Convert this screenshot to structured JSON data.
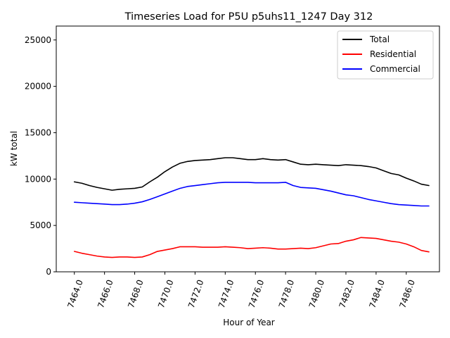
{
  "chart_data": {
    "type": "line",
    "title": "Timeseries Load for P5U p5uhs11_1247  Day 312",
    "xlabel": "Hour of Year",
    "ylabel": "kW total",
    "xlim": [
      7462.8,
      7488.2
    ],
    "ylim": [
      0,
      26500
    ],
    "xticks": [
      7464.0,
      7466.0,
      7468.0,
      7470.0,
      7472.0,
      7474.0,
      7476.0,
      7478.0,
      7480.0,
      7482.0,
      7484.0,
      7486.0
    ],
    "xtick_labels": [
      "7464.0",
      "7466.0",
      "7468.0",
      "7470.0",
      "7472.0",
      "7474.0",
      "7476.0",
      "7478.0",
      "7480.0",
      "7482.0",
      "7484.0",
      "7486.0"
    ],
    "yticks": [
      0,
      5000,
      10000,
      15000,
      20000,
      25000
    ],
    "ytick_labels": [
      "0",
      "5000",
      "10000",
      "15000",
      "20000",
      "25000"
    ],
    "legend_position": "top-right",
    "x": [
      7464.0,
      7464.5,
      7465.0,
      7465.5,
      7466.0,
      7466.5,
      7467.0,
      7467.5,
      7468.0,
      7468.5,
      7469.0,
      7469.5,
      7470.0,
      7470.5,
      7471.0,
      7471.5,
      7472.0,
      7472.5,
      7473.0,
      7473.5,
      7474.0,
      7474.5,
      7475.0,
      7475.5,
      7476.0,
      7476.5,
      7477.0,
      7477.5,
      7478.0,
      7478.5,
      7479.0,
      7479.5,
      7480.0,
      7480.5,
      7481.0,
      7481.5,
      7482.0,
      7482.5,
      7483.0,
      7483.5,
      7484.0,
      7484.5,
      7485.0,
      7485.5,
      7486.0,
      7486.5,
      7487.0,
      7487.5
    ],
    "series": [
      {
        "name": "Total",
        "color": "#000000",
        "values": [
          9700,
          9550,
          9300,
          9100,
          8950,
          8800,
          8900,
          8950,
          9000,
          9150,
          9700,
          10200,
          10800,
          11300,
          11700,
          11900,
          12000,
          12050,
          12100,
          12200,
          12300,
          12300,
          12200,
          12100,
          12100,
          12200,
          12100,
          12050,
          12100,
          11850,
          11600,
          11550,
          11600,
          11550,
          11500,
          11450,
          11550,
          11500,
          11450,
          11350,
          11200,
          10900,
          10600,
          10450,
          10100,
          9800,
          9450,
          9300
        ]
      },
      {
        "name": "Residential",
        "color": "#ff0000",
        "values": [
          2200,
          2000,
          1850,
          1700,
          1600,
          1550,
          1600,
          1600,
          1550,
          1600,
          1850,
          2200,
          2350,
          2500,
          2700,
          2700,
          2700,
          2650,
          2650,
          2650,
          2700,
          2650,
          2600,
          2500,
          2550,
          2600,
          2550,
          2450,
          2450,
          2500,
          2550,
          2500,
          2600,
          2800,
          3000,
          3050,
          3300,
          3450,
          3700,
          3650,
          3600,
          3450,
          3300,
          3200,
          3000,
          2700,
          2300,
          2150
        ]
      },
      {
        "name": "Commercial",
        "color": "#0000ff",
        "values": [
          7500,
          7450,
          7400,
          7350,
          7300,
          7250,
          7250,
          7300,
          7400,
          7550,
          7800,
          8100,
          8400,
          8700,
          9000,
          9200,
          9300,
          9400,
          9500,
          9600,
          9650,
          9650,
          9650,
          9650,
          9600,
          9600,
          9600,
          9600,
          9650,
          9300,
          9100,
          9050,
          9000,
          8850,
          8700,
          8500,
          8300,
          8200,
          8000,
          7800,
          7650,
          7500,
          7350,
          7250,
          7200,
          7150,
          7100,
          7100
        ]
      }
    ]
  }
}
